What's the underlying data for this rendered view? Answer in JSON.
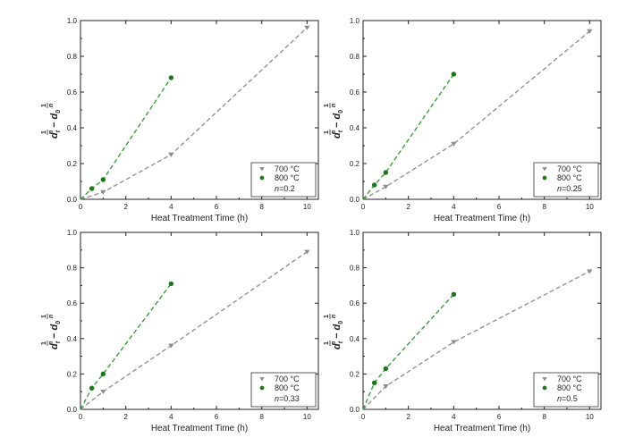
{
  "chart_data": [
    {
      "type": "scatter",
      "xlabel": "Heat Treatment Time (h)",
      "ylabel": {
        "tr_num": "1",
        "tr_den": "n",
        "trail_var": "n",
        "lead_base": "d",
        "lead_sub": "t",
        "minus": "−",
        "trail_base": "d",
        "trail_sub": "0"
      },
      "xlim": [
        0,
        10.5
      ],
      "ylim": [
        0,
        1.0
      ],
      "x_ticks": [
        "0",
        "2",
        "4",
        "6",
        "8",
        "10"
      ],
      "y_ticks": [
        "0.0",
        "0.2",
        "0.4",
        "0.6",
        "0.8",
        "1.0"
      ],
      "grid": false,
      "legend_position": "bottom-right",
      "n_label": {
        "var": "n",
        "value": "=0.2"
      },
      "series": [
        {
          "name": "700 °C",
          "color": "#8c8c8c",
          "marker": "triangle-down",
          "line_color": "#8c8c8c",
          "x": [
            0,
            1,
            4,
            10
          ],
          "y": [
            0,
            0.04,
            0.25,
            0.96
          ]
        },
        {
          "name": "800 °C",
          "color": "#1a7a1a",
          "marker": "circle",
          "line_color": "#2a9a2a",
          "x": [
            0,
            0.5,
            1,
            4
          ],
          "y": [
            0,
            0.06,
            0.11,
            0.68
          ]
        }
      ]
    },
    {
      "type": "scatter",
      "xlabel": "Heat Treatment Time (h)",
      "ylabel": {
        "tr_num": "1",
        "tr_den": "n",
        "trail_var": "n",
        "lead_base": "d",
        "lead_sub": "t",
        "minus": "−",
        "trail_base": "d",
        "trail_sub": "0"
      },
      "xlim": [
        0,
        10.5
      ],
      "ylim": [
        0,
        1.0
      ],
      "x_ticks": [
        "0",
        "2",
        "4",
        "6",
        "8",
        "10"
      ],
      "y_ticks": [
        "0.0",
        "0.2",
        "0.4",
        "0.6",
        "0.8",
        "1.0"
      ],
      "grid": false,
      "legend_position": "bottom-right",
      "n_label": {
        "var": "n",
        "value": "=0.25"
      },
      "series": [
        {
          "name": "700 °C",
          "color": "#8c8c8c",
          "marker": "triangle-down",
          "line_color": "#8c8c8c",
          "x": [
            0,
            1,
            4,
            10
          ],
          "y": [
            0,
            0.07,
            0.31,
            0.94
          ]
        },
        {
          "name": "800 °C",
          "color": "#1a7a1a",
          "marker": "circle",
          "line_color": "#2a9a2a",
          "x": [
            0,
            0.5,
            1,
            4
          ],
          "y": [
            0,
            0.08,
            0.15,
            0.7
          ]
        }
      ]
    },
    {
      "type": "scatter",
      "xlabel": "Heat Treatment Time (h)",
      "ylabel": {
        "tr_num": "1",
        "tr_den": "n",
        "trail_var": "n",
        "lead_base": "d",
        "lead_sub": "t",
        "minus": "−",
        "trail_base": "d",
        "trail_sub": "0"
      },
      "xlim": [
        0,
        10.5
      ],
      "ylim": [
        0,
        1.0
      ],
      "x_ticks": [
        "0",
        "2",
        "4",
        "6",
        "8",
        "10"
      ],
      "y_ticks": [
        "0.0",
        "0.2",
        "0.4",
        "0.6",
        "0.8",
        "1.0"
      ],
      "grid": false,
      "legend_position": "bottom-right",
      "n_label": {
        "var": "n",
        "value": "=0.33"
      },
      "series": [
        {
          "name": "700 °C",
          "color": "#8c8c8c",
          "marker": "triangle-down",
          "line_color": "#8c8c8c",
          "x": [
            0,
            1,
            4,
            10
          ],
          "y": [
            0,
            0.1,
            0.36,
            0.89
          ]
        },
        {
          "name": "800 °C",
          "color": "#1a7a1a",
          "marker": "circle",
          "line_color": "#2a9a2a",
          "x": [
            0,
            0.5,
            1,
            4
          ],
          "y": [
            0,
            0.12,
            0.2,
            0.71
          ]
        }
      ]
    },
    {
      "type": "scatter",
      "xlabel": "Heat Treatment Time (h)",
      "ylabel": {
        "tr_num": "1",
        "tr_den": "n",
        "trail_var": "n",
        "lead_base": "d",
        "lead_sub": "t",
        "minus": "−",
        "trail_base": "d",
        "trail_sub": "0"
      },
      "xlim": [
        0,
        10.5
      ],
      "ylim": [
        0,
        1.0
      ],
      "x_ticks": [
        "0",
        "2",
        "4",
        "6",
        "8",
        "10"
      ],
      "y_ticks": [
        "0.0",
        "0.2",
        "0.4",
        "0.6",
        "0.8",
        "1.0"
      ],
      "grid": false,
      "legend_position": "bottom-right",
      "n_label": {
        "var": "n",
        "value": "=0.5"
      },
      "series": [
        {
          "name": "700 °C",
          "color": "#8c8c8c",
          "marker": "triangle-down",
          "line_color": "#8c8c8c",
          "x": [
            0,
            1,
            4,
            10
          ],
          "y": [
            0,
            0.13,
            0.38,
            0.78
          ]
        },
        {
          "name": "800 °C",
          "color": "#1a7a1a",
          "marker": "circle",
          "line_color": "#2a9a2a",
          "x": [
            0,
            0.5,
            1,
            4
          ],
          "y": [
            0,
            0.15,
            0.23,
            0.65
          ]
        }
      ]
    }
  ]
}
